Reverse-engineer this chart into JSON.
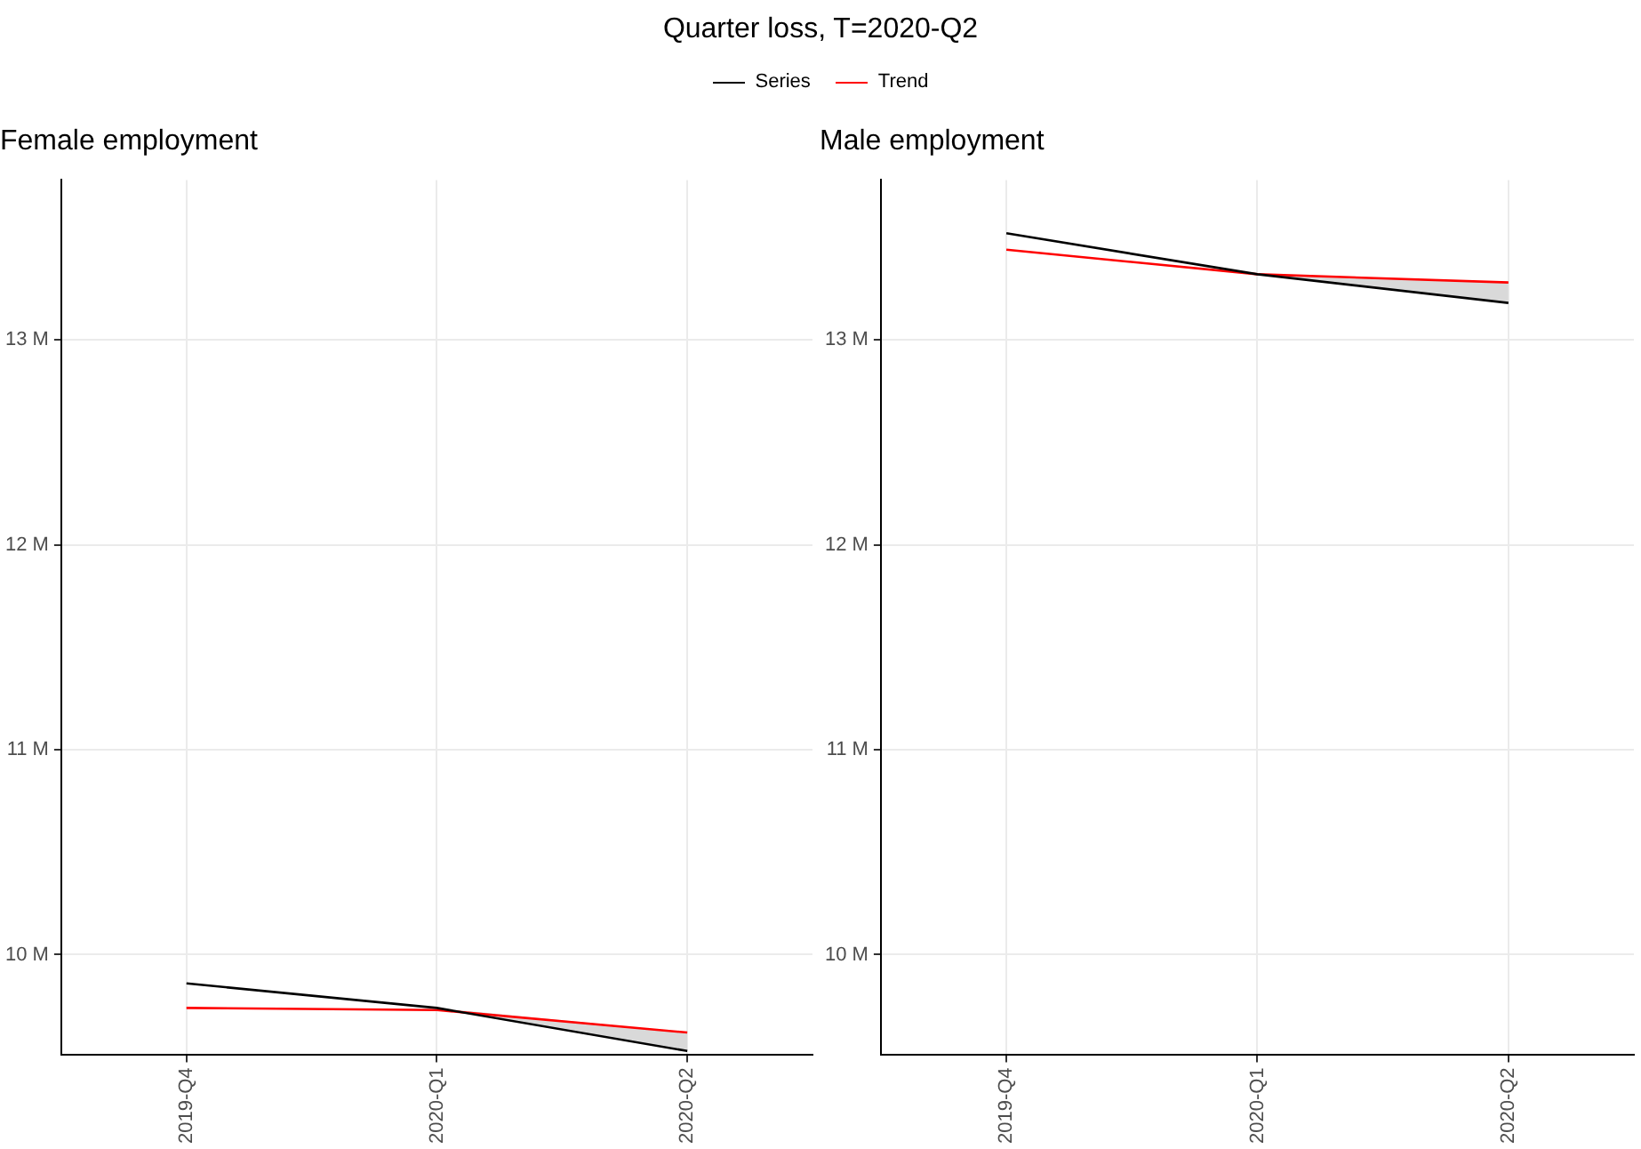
{
  "chart_data": [
    {
      "type": "line",
      "title": "Female employment",
      "annotations": [
        "Quarter loss, T=2020-Q2"
      ],
      "categories": [
        "2019-Q4",
        "2020-Q1",
        "2020-Q2"
      ],
      "series": [
        {
          "name": "Series",
          "color": "#000000",
          "values": [
            9.86,
            9.74,
            9.53
          ],
          "lower": [
            null,
            9.74,
            9.53
          ],
          "upper": [
            null,
            9.74,
            9.62
          ]
        },
        {
          "name": "Trend",
          "color": "#ff0000",
          "values": [
            9.74,
            9.73,
            9.62
          ]
        }
      ],
      "ylim": [
        9.51,
        13.78
      ],
      "yticks": [
        {
          "value": 10,
          "label": "10 M"
        },
        {
          "value": 11,
          "label": "11 M"
        },
        {
          "value": 12,
          "label": "12 M"
        },
        {
          "value": 13,
          "label": "13 M"
        }
      ],
      "grid": true,
      "legend": "top",
      "marker": "none",
      "line_style": "solid"
    },
    {
      "type": "line",
      "title": "Male employment",
      "categories": [
        "2019-Q4",
        "2020-Q1",
        "2020-Q2"
      ],
      "series": [
        {
          "color": "#000000",
          "values": [
            13.52,
            13.32,
            13.18
          ],
          "lower": [
            null,
            13.32,
            13.18
          ],
          "upper": [
            null,
            13.32,
            13.28
          ]
        },
        {
          "color": "#ff0000",
          "values": [
            13.44,
            13.32,
            13.28
          ]
        }
      ],
      "ylim": [
        9.51,
        13.78
      ],
      "yticks": [
        {
          "value": 10,
          "label": "10 M"
        },
        {
          "value": 11,
          "label": "11 M"
        },
        {
          "value": 12,
          "label": "12 M"
        },
        {
          "value": 13,
          "label": "13 M"
        }
      ],
      "grid": true,
      "legend": false,
      "marker": "none",
      "line_style": "solid"
    }
  ]
}
